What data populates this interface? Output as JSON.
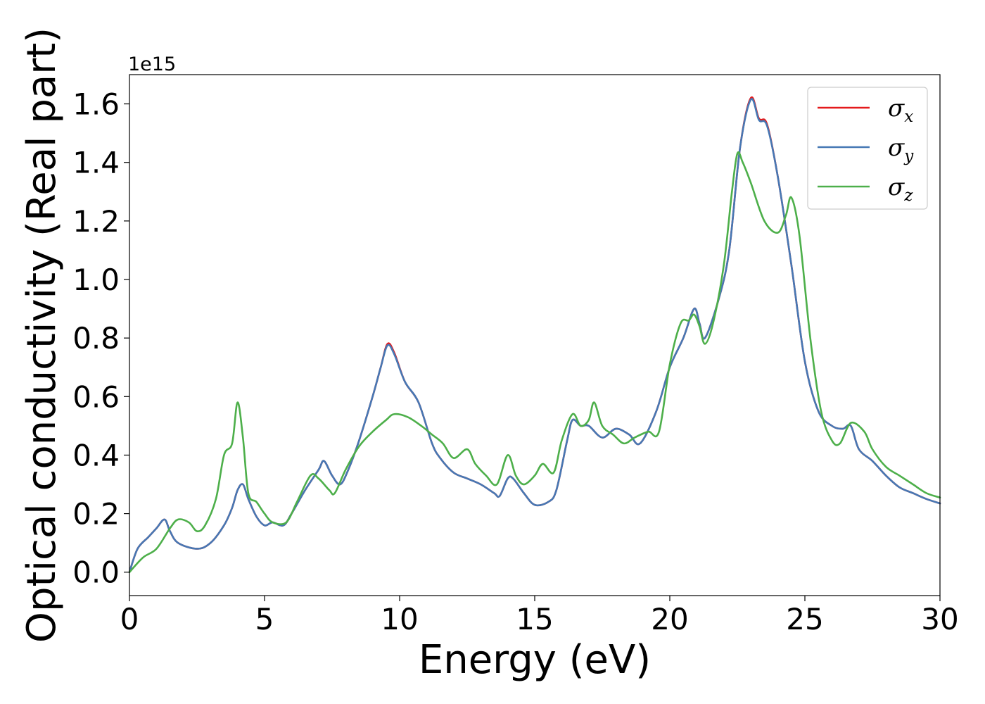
{
  "chart_data": {
    "type": "line",
    "xlabel": "Energy (eV)",
    "ylabel": "Optical conductivity (Real part)",
    "y_offset_label": "1e15",
    "xlim": [
      0,
      30
    ],
    "ylim": [
      -0.08,
      1.7
    ],
    "x_ticks": [
      0,
      5,
      10,
      15,
      20,
      25,
      30
    ],
    "y_ticks": [
      0.0,
      0.2,
      0.4,
      0.6,
      0.8,
      1.0,
      1.2,
      1.4,
      1.6
    ],
    "x_tick_labels": [
      "0",
      "5",
      "10",
      "15",
      "20",
      "25",
      "30"
    ],
    "y_tick_labels": [
      "0.0",
      "0.2",
      "0.4",
      "0.6",
      "0.8",
      "1.0",
      "1.2",
      "1.4",
      "1.6"
    ],
    "grid": false,
    "legend_position": "top-right",
    "series": [
      {
        "name": "σx",
        "symbol": "σ",
        "subscript": "x",
        "color": "#e41a1c",
        "points": [
          [
            0,
            0
          ],
          [
            0.3,
            0.08
          ],
          [
            0.7,
            0.12
          ],
          [
            1.0,
            0.15
          ],
          [
            1.3,
            0.18
          ],
          [
            1.5,
            0.14
          ],
          [
            1.8,
            0.1
          ],
          [
            2.5,
            0.08
          ],
          [
            3.0,
            0.1
          ],
          [
            3.5,
            0.16
          ],
          [
            3.8,
            0.22
          ],
          [
            4.0,
            0.28
          ],
          [
            4.2,
            0.3
          ],
          [
            4.4,
            0.25
          ],
          [
            4.7,
            0.19
          ],
          [
            5.0,
            0.16
          ],
          [
            5.3,
            0.17
          ],
          [
            5.7,
            0.16
          ],
          [
            6.0,
            0.2
          ],
          [
            6.5,
            0.28
          ],
          [
            7.0,
            0.35
          ],
          [
            7.2,
            0.38
          ],
          [
            7.5,
            0.33
          ],
          [
            7.8,
            0.3
          ],
          [
            8.1,
            0.35
          ],
          [
            8.5,
            0.45
          ],
          [
            9.0,
            0.6
          ],
          [
            9.3,
            0.7
          ],
          [
            9.55,
            0.78
          ],
          [
            9.8,
            0.75
          ],
          [
            10.2,
            0.65
          ],
          [
            10.7,
            0.58
          ],
          [
            11.2,
            0.44
          ],
          [
            11.5,
            0.39
          ],
          [
            12.0,
            0.34
          ],
          [
            12.5,
            0.32
          ],
          [
            13.0,
            0.3
          ],
          [
            13.5,
            0.27
          ],
          [
            13.7,
            0.26
          ],
          [
            14.0,
            0.32
          ],
          [
            14.2,
            0.32
          ],
          [
            14.6,
            0.27
          ],
          [
            15.0,
            0.23
          ],
          [
            15.5,
            0.24
          ],
          [
            15.8,
            0.28
          ],
          [
            16.2,
            0.45
          ],
          [
            16.4,
            0.52
          ],
          [
            16.7,
            0.5
          ],
          [
            17.0,
            0.5
          ],
          [
            17.5,
            0.46
          ],
          [
            18.0,
            0.49
          ],
          [
            18.5,
            0.47
          ],
          [
            18.9,
            0.44
          ],
          [
            19.5,
            0.55
          ],
          [
            20.0,
            0.7
          ],
          [
            20.5,
            0.8
          ],
          [
            20.9,
            0.9
          ],
          [
            21.1,
            0.85
          ],
          [
            21.3,
            0.8
          ],
          [
            21.8,
            0.93
          ],
          [
            22.2,
            1.1
          ],
          [
            22.6,
            1.45
          ],
          [
            23.0,
            1.62
          ],
          [
            23.3,
            1.55
          ],
          [
            23.6,
            1.53
          ],
          [
            24.0,
            1.35
          ],
          [
            24.5,
            1.05
          ],
          [
            25.0,
            0.72
          ],
          [
            25.5,
            0.55
          ],
          [
            26.0,
            0.5
          ],
          [
            26.4,
            0.49
          ],
          [
            26.7,
            0.5
          ],
          [
            27.0,
            0.42
          ],
          [
            27.5,
            0.38
          ],
          [
            28.0,
            0.33
          ],
          [
            28.5,
            0.29
          ],
          [
            29.0,
            0.27
          ],
          [
            29.5,
            0.25
          ],
          [
            30.0,
            0.235
          ]
        ]
      },
      {
        "name": "σy",
        "symbol": "σ",
        "subscript": "y",
        "color": "#4678b4",
        "points": [
          [
            0,
            0
          ],
          [
            0.3,
            0.08
          ],
          [
            0.7,
            0.12
          ],
          [
            1.0,
            0.15
          ],
          [
            1.3,
            0.18
          ],
          [
            1.5,
            0.14
          ],
          [
            1.8,
            0.1
          ],
          [
            2.5,
            0.08
          ],
          [
            3.0,
            0.1
          ],
          [
            3.5,
            0.16
          ],
          [
            3.8,
            0.22
          ],
          [
            4.0,
            0.28
          ],
          [
            4.2,
            0.3
          ],
          [
            4.4,
            0.25
          ],
          [
            4.7,
            0.19
          ],
          [
            5.0,
            0.16
          ],
          [
            5.3,
            0.17
          ],
          [
            5.7,
            0.16
          ],
          [
            6.0,
            0.2
          ],
          [
            6.5,
            0.28
          ],
          [
            7.0,
            0.35
          ],
          [
            7.2,
            0.38
          ],
          [
            7.5,
            0.33
          ],
          [
            7.8,
            0.3
          ],
          [
            8.1,
            0.35
          ],
          [
            8.5,
            0.45
          ],
          [
            9.0,
            0.6
          ],
          [
            9.3,
            0.7
          ],
          [
            9.55,
            0.775
          ],
          [
            9.8,
            0.745
          ],
          [
            10.2,
            0.65
          ],
          [
            10.7,
            0.58
          ],
          [
            11.2,
            0.44
          ],
          [
            11.5,
            0.39
          ],
          [
            12.0,
            0.34
          ],
          [
            12.5,
            0.32
          ],
          [
            13.0,
            0.3
          ],
          [
            13.5,
            0.27
          ],
          [
            13.7,
            0.26
          ],
          [
            14.0,
            0.32
          ],
          [
            14.2,
            0.32
          ],
          [
            14.6,
            0.27
          ],
          [
            15.0,
            0.23
          ],
          [
            15.5,
            0.24
          ],
          [
            15.8,
            0.28
          ],
          [
            16.2,
            0.45
          ],
          [
            16.4,
            0.52
          ],
          [
            16.7,
            0.5
          ],
          [
            17.0,
            0.5
          ],
          [
            17.5,
            0.46
          ],
          [
            18.0,
            0.49
          ],
          [
            18.5,
            0.47
          ],
          [
            18.9,
            0.44
          ],
          [
            19.5,
            0.55
          ],
          [
            20.0,
            0.7
          ],
          [
            20.5,
            0.8
          ],
          [
            20.9,
            0.9
          ],
          [
            21.1,
            0.85
          ],
          [
            21.3,
            0.8
          ],
          [
            21.8,
            0.93
          ],
          [
            22.2,
            1.1
          ],
          [
            22.6,
            1.45
          ],
          [
            23.0,
            1.615
          ],
          [
            23.3,
            1.545
          ],
          [
            23.6,
            1.525
          ],
          [
            24.0,
            1.35
          ],
          [
            24.5,
            1.05
          ],
          [
            25.0,
            0.72
          ],
          [
            25.5,
            0.55
          ],
          [
            26.0,
            0.5
          ],
          [
            26.4,
            0.49
          ],
          [
            26.7,
            0.5
          ],
          [
            27.0,
            0.42
          ],
          [
            27.5,
            0.38
          ],
          [
            28.0,
            0.33
          ],
          [
            28.5,
            0.29
          ],
          [
            29.0,
            0.27
          ],
          [
            29.5,
            0.25
          ],
          [
            30.0,
            0.235
          ]
        ]
      },
      {
        "name": "σz",
        "symbol": "σ",
        "subscript": "z",
        "color": "#4daf4a",
        "points": [
          [
            0,
            0
          ],
          [
            0.5,
            0.05
          ],
          [
            1.0,
            0.08
          ],
          [
            1.5,
            0.15
          ],
          [
            1.8,
            0.18
          ],
          [
            2.2,
            0.17
          ],
          [
            2.5,
            0.14
          ],
          [
            2.8,
            0.16
          ],
          [
            3.2,
            0.25
          ],
          [
            3.5,
            0.4
          ],
          [
            3.8,
            0.44
          ],
          [
            4.0,
            0.58
          ],
          [
            4.2,
            0.46
          ],
          [
            4.4,
            0.27
          ],
          [
            4.7,
            0.24
          ],
          [
            5.0,
            0.2
          ],
          [
            5.3,
            0.17
          ],
          [
            5.8,
            0.17
          ],
          [
            6.2,
            0.24
          ],
          [
            6.7,
            0.33
          ],
          [
            7.0,
            0.32
          ],
          [
            7.4,
            0.28
          ],
          [
            7.6,
            0.27
          ],
          [
            8.0,
            0.35
          ],
          [
            8.5,
            0.43
          ],
          [
            9.0,
            0.48
          ],
          [
            9.5,
            0.52
          ],
          [
            9.8,
            0.54
          ],
          [
            10.3,
            0.53
          ],
          [
            10.8,
            0.5
          ],
          [
            11.2,
            0.47
          ],
          [
            11.6,
            0.44
          ],
          [
            12.0,
            0.39
          ],
          [
            12.5,
            0.42
          ],
          [
            12.8,
            0.37
          ],
          [
            13.2,
            0.33
          ],
          [
            13.6,
            0.3
          ],
          [
            14.0,
            0.4
          ],
          [
            14.3,
            0.33
          ],
          [
            14.6,
            0.3
          ],
          [
            15.0,
            0.33
          ],
          [
            15.3,
            0.37
          ],
          [
            15.7,
            0.34
          ],
          [
            16.0,
            0.45
          ],
          [
            16.4,
            0.54
          ],
          [
            16.7,
            0.5
          ],
          [
            17.0,
            0.52
          ],
          [
            17.2,
            0.58
          ],
          [
            17.5,
            0.5
          ],
          [
            17.9,
            0.47
          ],
          [
            18.3,
            0.44
          ],
          [
            18.7,
            0.46
          ],
          [
            19.2,
            0.48
          ],
          [
            19.6,
            0.48
          ],
          [
            20.0,
            0.71
          ],
          [
            20.4,
            0.85
          ],
          [
            20.7,
            0.86
          ],
          [
            20.9,
            0.88
          ],
          [
            21.1,
            0.84
          ],
          [
            21.3,
            0.78
          ],
          [
            21.6,
            0.85
          ],
          [
            22.0,
            1.05
          ],
          [
            22.3,
            1.3
          ],
          [
            22.5,
            1.43
          ],
          [
            22.7,
            1.4
          ],
          [
            23.0,
            1.33
          ],
          [
            23.5,
            1.2
          ],
          [
            24.0,
            1.16
          ],
          [
            24.3,
            1.22
          ],
          [
            24.5,
            1.28
          ],
          [
            24.8,
            1.15
          ],
          [
            25.2,
            0.8
          ],
          [
            25.6,
            0.55
          ],
          [
            26.0,
            0.45
          ],
          [
            26.3,
            0.44
          ],
          [
            26.7,
            0.51
          ],
          [
            27.2,
            0.48
          ],
          [
            27.5,
            0.42
          ],
          [
            28.0,
            0.36
          ],
          [
            28.5,
            0.33
          ],
          [
            29.0,
            0.3
          ],
          [
            29.5,
            0.27
          ],
          [
            30.0,
            0.255
          ]
        ]
      }
    ]
  }
}
